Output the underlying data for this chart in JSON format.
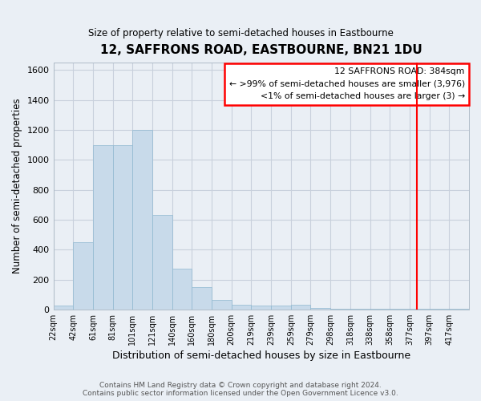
{
  "title": "12, SAFFRONS ROAD, EASTBOURNE, BN21 1DU",
  "subtitle": "Size of property relative to semi-detached houses in Eastbourne",
  "xlabel": "Distribution of semi-detached houses by size in Eastbourne",
  "ylabel": "Number of semi-detached properties",
  "footer_line1": "Contains HM Land Registry data © Crown copyright and database right 2024.",
  "footer_line2": "Contains public sector information licensed under the Open Government Licence v3.0.",
  "bin_labels": [
    "22sqm",
    "42sqm",
    "61sqm",
    "81sqm",
    "101sqm",
    "121sqm",
    "140sqm",
    "160sqm",
    "180sqm",
    "200sqm",
    "219sqm",
    "239sqm",
    "259sqm",
    "279sqm",
    "298sqm",
    "318sqm",
    "338sqm",
    "358sqm",
    "377sqm",
    "397sqm",
    "417sqm"
  ],
  "bar_heights": [
    25,
    450,
    1100,
    1100,
    1200,
    630,
    270,
    150,
    65,
    30,
    25,
    25,
    30,
    10,
    5,
    5,
    5,
    5,
    5,
    5,
    5
  ],
  "bar_color": "#c8daea",
  "bar_edge_color": "#90b8d0",
  "grid_color": "#c8d0dc",
  "background_color": "#eaeff5",
  "annotation_box_text": "12 SAFFRONS ROAD: 384sqm\n← >99% of semi-detached houses are smaller (3,976)\n<1% of semi-detached houses are larger (3) →",
  "property_line_x": 384,
  "ylim": [
    0,
    1650
  ],
  "yticks": [
    0,
    200,
    400,
    600,
    800,
    1000,
    1200,
    1400,
    1600
  ]
}
